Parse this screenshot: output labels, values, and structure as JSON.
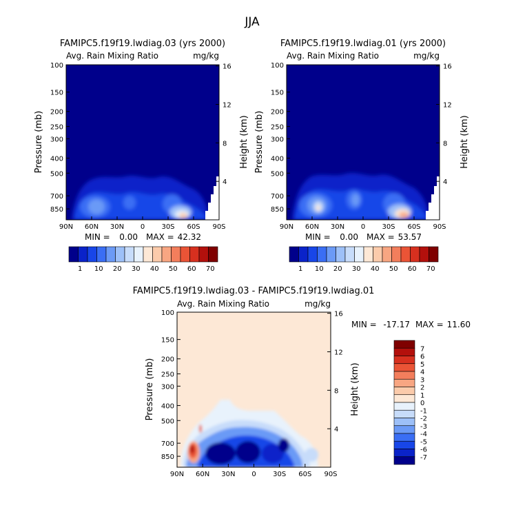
{
  "figure_title": "JJA",
  "colors": {
    "field_low": "#00008b",
    "background_zero": "#fde8d6"
  },
  "chart_data": [
    {
      "type": "heatmap",
      "title": "FAMIPC5.f19f19.lwdiag.03 (yrs 2000)",
      "subtitle_left": "Avg. Rain Mixing Ratio",
      "subtitle_right": "mg/kg",
      "ylabel": "Pressure (mb)",
      "ylabel_right": "Height (km)",
      "x_ticks": [
        "90N",
        "60N",
        "30N",
        "0",
        "30S",
        "60S",
        "90S"
      ],
      "y_ticks": [
        "100",
        "150",
        "200",
        "250",
        "300",
        "400",
        "500",
        "700",
        "850"
      ],
      "y_right_ticks": [
        "16",
        "12",
        "8",
        "4"
      ],
      "stats": {
        "min_label": "MIN =",
        "min": "0.00",
        "max_label": "MAX =",
        "max": "42.32"
      },
      "colorbar": {
        "labels": [
          "1",
          "10",
          "20",
          "30",
          "40",
          "50",
          "60",
          "70"
        ],
        "colors": [
          "#00008b",
          "#0a23c9",
          "#1846e8",
          "#3a6ef4",
          "#6b9af6",
          "#9dc0f8",
          "#c7dcfa",
          "#e8f2fc",
          "#fde8d6",
          "#fbcbab",
          "#f8a682",
          "#f37e5c",
          "#ea5436",
          "#d7301f",
          "#b3100c",
          "#7f0000"
        ]
      }
    },
    {
      "type": "heatmap",
      "title": "FAMIPC5.f19f19.lwdiag.01 (yrs 2000)",
      "subtitle_left": "Avg. Rain Mixing Ratio",
      "subtitle_right": "mg/kg",
      "ylabel": "Pressure (mb)",
      "ylabel_right": "Height (km)",
      "x_ticks": [
        "90N",
        "60N",
        "30N",
        "0",
        "30S",
        "60S",
        "90S"
      ],
      "y_ticks": [
        "100",
        "150",
        "200",
        "250",
        "300",
        "400",
        "500",
        "700",
        "850"
      ],
      "y_right_ticks": [
        "16",
        "12",
        "8",
        "4"
      ],
      "stats": {
        "min_label": "MIN =",
        "min": "0.00",
        "max_label": "MAX =",
        "max": "53.57"
      },
      "colorbar": {
        "labels": [
          "1",
          "10",
          "20",
          "30",
          "40",
          "50",
          "60",
          "70"
        ],
        "colors": [
          "#00008b",
          "#0a23c9",
          "#1846e8",
          "#3a6ef4",
          "#6b9af6",
          "#9dc0f8",
          "#c7dcfa",
          "#e8f2fc",
          "#fde8d6",
          "#fbcbab",
          "#f8a682",
          "#f37e5c",
          "#ea5436",
          "#d7301f",
          "#b3100c",
          "#7f0000"
        ]
      }
    },
    {
      "type": "heatmap",
      "title": "FAMIPC5.f19f19.lwdiag.03 - FAMIPC5.f19f19.lwdiag.01",
      "subtitle_left": "Avg. Rain Mixing Ratio",
      "subtitle_right": "mg/kg",
      "ylabel": "Pressure (mb)",
      "ylabel_right": "Height (km)",
      "x_ticks": [
        "90N",
        "60N",
        "30N",
        "0",
        "30S",
        "60S",
        "90S"
      ],
      "y_ticks": [
        "100",
        "150",
        "200",
        "250",
        "300",
        "400",
        "500",
        "700",
        "850"
      ],
      "y_right_ticks": [
        "16",
        "12",
        "8",
        "4"
      ],
      "stats": {
        "min_label": "MIN =",
        "min": "-17.17",
        "max_label": "MAX =",
        "max": "11.60"
      },
      "colorbar": {
        "labels": [
          "7",
          "6",
          "5",
          "4",
          "3",
          "2",
          "1",
          "0",
          "-1",
          "-2",
          "-3",
          "-4",
          "-5",
          "-6",
          "-7"
        ],
        "colors": [
          "#7f0000",
          "#b3100c",
          "#d7301f",
          "#ea5436",
          "#f37e5c",
          "#f8a682",
          "#fbcbab",
          "#fde8d6",
          "#e8f2fc",
          "#c7dcfa",
          "#9dc0f8",
          "#6b9af6",
          "#3a6ef4",
          "#1846e8",
          "#0a23c9",
          "#00008b"
        ]
      }
    }
  ]
}
